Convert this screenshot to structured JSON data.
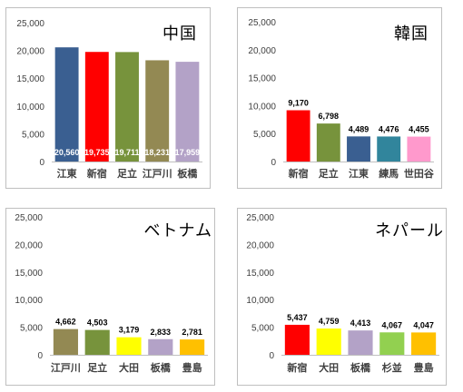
{
  "chart_data": [
    {
      "type": "bar",
      "title": "中国",
      "categories": [
        "江東",
        "新宿",
        "足立",
        "江戸川",
        "板橋"
      ],
      "values": [
        20560,
        19735,
        19711,
        18231,
        17959
      ],
      "value_labels": [
        "20,560",
        "19,735",
        "19,711",
        "18,231",
        "17,959"
      ],
      "colors": [
        "#3a5f91",
        "#ff0000",
        "#77933c",
        "#938953",
        "#b3a2c7"
      ],
      "label_position": "inside",
      "ylim": [
        0,
        25000
      ],
      "yticks": [
        "0",
        "5,000",
        "10,000",
        "15,000",
        "20,000",
        "25,000"
      ],
      "grid": false,
      "legend": "none"
    },
    {
      "type": "bar",
      "title": "韓国",
      "categories": [
        "新宿",
        "足立",
        "江東",
        "練馬",
        "世田谷"
      ],
      "values": [
        9170,
        6798,
        4489,
        4476,
        4455
      ],
      "value_labels": [
        "9,170",
        "6,798",
        "4,489",
        "4,476",
        "4,455"
      ],
      "colors": [
        "#ff0000",
        "#77933c",
        "#3a5f91",
        "#31859c",
        "#ff99cc"
      ],
      "label_position": "above",
      "ylim": [
        0,
        25000
      ],
      "yticks": [
        "0",
        "5,000",
        "10,000",
        "15,000",
        "20,000",
        "25,000"
      ],
      "grid": false,
      "legend": "none"
    },
    {
      "type": "bar",
      "title": "ベトナム",
      "categories": [
        "江戸川",
        "足立",
        "大田",
        "板橋",
        "豊島"
      ],
      "values": [
        4662,
        4503,
        3179,
        2833,
        2781
      ],
      "value_labels": [
        "4,662",
        "4,503",
        "3,179",
        "2,833",
        "2,781"
      ],
      "colors": [
        "#938953",
        "#77933c",
        "#ffff00",
        "#b3a2c7",
        "#ffc000"
      ],
      "label_position": "above",
      "ylim": [
        0,
        25000
      ],
      "yticks": [
        "0",
        "5,000",
        "10,000",
        "15,000",
        "20,000",
        "25,000"
      ],
      "grid": false,
      "legend": "none"
    },
    {
      "type": "bar",
      "title": "ネパール",
      "categories": [
        "新宿",
        "大田",
        "板橋",
        "杉並",
        "豊島"
      ],
      "values": [
        5437,
        4759,
        4413,
        4067,
        4047
      ],
      "value_labels": [
        "5,437",
        "4,759",
        "4,413",
        "4,067",
        "4,047"
      ],
      "colors": [
        "#ff0000",
        "#ffff00",
        "#b3a2c7",
        "#92d050",
        "#ffc000"
      ],
      "label_position": "above",
      "ylim": [
        0,
        25000
      ],
      "yticks": [
        "0",
        "5,000",
        "10,000",
        "15,000",
        "20,000",
        "25,000"
      ],
      "grid": false,
      "legend": "none"
    }
  ]
}
